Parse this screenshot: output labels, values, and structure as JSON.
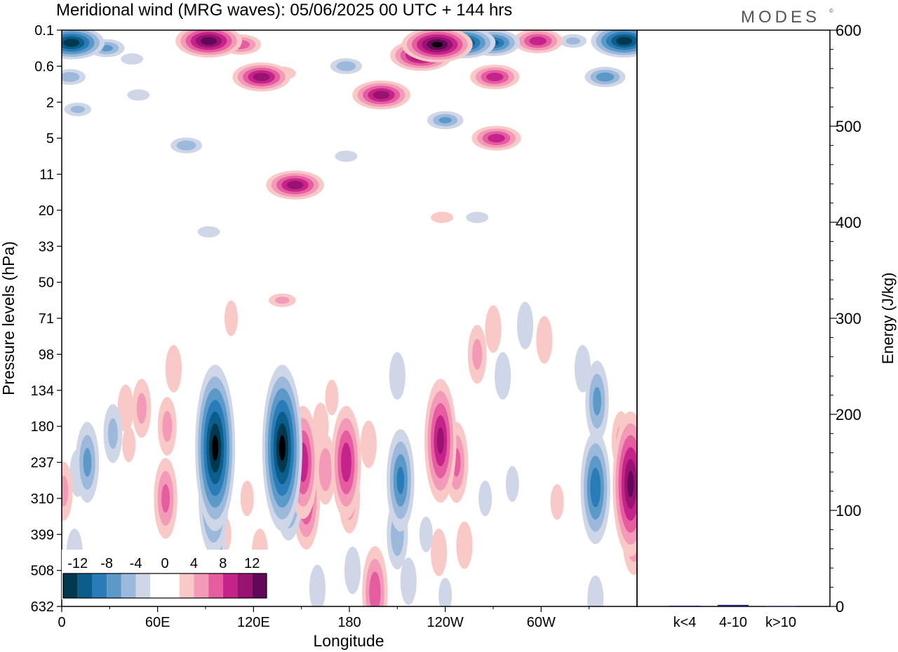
{
  "title": "Meridional wind (MRG waves):  05/06/2025  00 UTC  + 144 hrs",
  "brand": "MODES",
  "brand_mark": "©",
  "colors": {
    "neg": [
      "#00384f",
      "#0b5d8c",
      "#2a7cb8",
      "#5b9ac8",
      "#9cb8da",
      "#cfd6e8"
    ],
    "pos": [
      "#f8c9c6",
      "#f29ab8",
      "#e55c9f",
      "#c6238a",
      "#98126f",
      "#62075a"
    ],
    "zero": "#ffffff",
    "bar": "#1a1a66"
  },
  "chart_data": [
    {
      "type": "heatmap",
      "title": "Meridional wind (MRG waves):  05/06/2025  00 UTC  + 144 hrs",
      "xlabel": "Longitude",
      "ylabel": "Pressure levels (hPa)",
      "x_ticks": [
        "0",
        "60E",
        "120E",
        "180",
        "120W",
        "60W"
      ],
      "x_range_deg": [
        0,
        360
      ],
      "y_ticks": [
        "0.1",
        "0.6",
        "2",
        "5",
        "11",
        "20",
        "33",
        "50",
        "71",
        "98",
        "134",
        "180",
        "237",
        "310",
        "399",
        "508",
        "632"
      ],
      "colorbar": {
        "labels": [
          "-12",
          "-8",
          "-4",
          "0",
          "4",
          "8",
          "12"
        ],
        "levels": [
          -14,
          -12,
          -10,
          -8,
          -6,
          -4,
          -2,
          2,
          4,
          6,
          8,
          10,
          12,
          14
        ]
      },
      "features": [
        {
          "lon": 6,
          "lev": 0.35,
          "v": -13
        },
        {
          "lon": 28,
          "lev": 0.5,
          "v": -6
        },
        {
          "lon": 5,
          "lev": 1.3,
          "v": -5
        },
        {
          "lon": 10,
          "lev": 2.2,
          "v": -4
        },
        {
          "lon": 44,
          "lev": 0.8,
          "v": -3
        },
        {
          "lon": 48,
          "lev": 1.8,
          "v": -3
        },
        {
          "lon": 92,
          "lev": 0.3,
          "v": 13
        },
        {
          "lon": 112,
          "lev": 0.4,
          "v": 7
        },
        {
          "lon": 125,
          "lev": 1.3,
          "v": 11
        },
        {
          "lon": 138,
          "lev": 1.2,
          "v": 4
        },
        {
          "lon": 146,
          "lev": 4.3,
          "v": 11
        },
        {
          "lon": 138,
          "lev": 7.5,
          "v": 4
        },
        {
          "lon": 165,
          "lev": 12.2,
          "v": 5
        },
        {
          "lon": 178,
          "lev": 1.0,
          "v": -5
        },
        {
          "lon": 178,
          "lev": 3.5,
          "v": -3
        },
        {
          "lon": 200,
          "lev": 1.8,
          "v": 11
        },
        {
          "lon": 225,
          "lev": 0.7,
          "v": 12
        },
        {
          "lon": 235,
          "lev": 0.4,
          "v": 14
        },
        {
          "lon": 252,
          "lev": 0.35,
          "v": -12
        },
        {
          "lon": 270,
          "lev": 0.35,
          "v": -10
        },
        {
          "lon": 240,
          "lev": 2.5,
          "v": -6
        },
        {
          "lon": 260,
          "lev": 5.2,
          "v": -3
        },
        {
          "lon": 271,
          "lev": 1.3,
          "v": 9
        },
        {
          "lon": 272,
          "lev": 3.0,
          "v": 9
        },
        {
          "lon": 298,
          "lev": 0.3,
          "v": 9
        },
        {
          "lon": 320,
          "lev": 0.3,
          "v": -4
        },
        {
          "lon": 352,
          "lev": 0.3,
          "v": -13
        },
        {
          "lon": 340,
          "lev": 1.3,
          "v": -7
        },
        {
          "lon": 335,
          "lev": 10.3,
          "v": -6
        },
        {
          "lon": 40,
          "lev": 10.5,
          "v": 3
        },
        {
          "lon": 78,
          "lev": 3.2,
          "v": -5
        },
        {
          "lon": 92,
          "lev": 5.6,
          "v": -3
        },
        {
          "lon": 238,
          "lev": 5.2,
          "v": 3
        },
        {
          "lon": 210,
          "lev": 9.6,
          "v": -3
        },
        {
          "lon": 252,
          "lev": 14.3,
          "v": 3
        },
        {
          "lon": 102,
          "lev": 14.0,
          "v": 2
        },
        {
          "lon": 70,
          "lev": 9.4,
          "v": 3
        },
        {
          "lon": 90,
          "lev": 10.9,
          "v": 2
        },
        {
          "lon": 106,
          "lev": 8.0,
          "v": 2
        },
        {
          "lon": 42,
          "lev": 11.5,
          "v": 2
        },
        {
          "lon": 10,
          "lev": 12.3,
          "v": -3
        },
        {
          "lon": 16,
          "lev": 12.0,
          "v": -6
        },
        {
          "lon": 32,
          "lev": 11.2,
          "v": -4
        },
        {
          "lon": 8,
          "lev": 14.5,
          "v": -3
        },
        {
          "lon": 50,
          "lev": 10.5,
          "v": 4
        },
        {
          "lon": 66,
          "lev": 11.0,
          "v": 4
        },
        {
          "lon": 65,
          "lev": 13.0,
          "v": 6
        },
        {
          "lon": 96,
          "lev": 11.6,
          "v": -14
        },
        {
          "lon": 95,
          "lev": 13.0,
          "v": -9
        },
        {
          "lon": 97,
          "lev": 14.7,
          "v": -5
        },
        {
          "lon": 116,
          "lev": 13.0,
          "v": 2
        },
        {
          "lon": 124,
          "lev": 14.5,
          "v": 3
        },
        {
          "lon": 138,
          "lev": 11.6,
          "v": -14
        },
        {
          "lon": 142,
          "lev": 12.6,
          "v": -9
        },
        {
          "lon": 151,
          "lev": 12.0,
          "v": 9
        },
        {
          "lon": 153,
          "lev": 13.0,
          "v": 8
        },
        {
          "lon": 162,
          "lev": 11.0,
          "v": 3
        },
        {
          "lon": 169,
          "lev": 10.2,
          "v": 2
        },
        {
          "lon": 178,
          "lev": 12.0,
          "v": 9
        },
        {
          "lon": 180,
          "lev": 13.0,
          "v": 5
        },
        {
          "lon": 192,
          "lev": 11.5,
          "v": 3
        },
        {
          "lon": 196,
          "lev": 15.6,
          "v": 7
        },
        {
          "lon": 160,
          "lev": 15.5,
          "v": -3
        },
        {
          "lon": 182,
          "lev": 15.0,
          "v": -3
        },
        {
          "lon": 212,
          "lev": 12.5,
          "v": -8
        },
        {
          "lon": 210,
          "lev": 14.0,
          "v": -5
        },
        {
          "lon": 217,
          "lev": 15.3,
          "v": -3
        },
        {
          "lon": 237,
          "lev": 11.4,
          "v": 10
        },
        {
          "lon": 247,
          "lev": 12.0,
          "v": 6
        },
        {
          "lon": 260,
          "lev": 9.0,
          "v": 4
        },
        {
          "lon": 270,
          "lev": 8.3,
          "v": 3
        },
        {
          "lon": 276,
          "lev": 9.6,
          "v": -3
        },
        {
          "lon": 290,
          "lev": 8.2,
          "v": -3
        },
        {
          "lon": 302,
          "lev": 8.6,
          "v": 3
        },
        {
          "lon": 326,
          "lev": 9.4,
          "v": -3
        },
        {
          "lon": 334,
          "lev": 12.7,
          "v": -9
        },
        {
          "lon": 334,
          "lev": 15.8,
          "v": -3
        },
        {
          "lon": 356,
          "lev": 12.6,
          "v": 12
        },
        {
          "lon": 350,
          "lev": 11.4,
          "v": 4
        },
        {
          "lon": 358,
          "lev": 14.0,
          "v": 6
        },
        {
          "lon": 1,
          "lev": 12.8,
          "v": 4
        },
        {
          "lon": 236,
          "lev": 14.5,
          "v": 3
        },
        {
          "lon": 265,
          "lev": 13.0,
          "v": -2
        },
        {
          "lon": 282,
          "lev": 12.6,
          "v": -2
        },
        {
          "lon": 310,
          "lev": 13.1,
          "v": 2
        },
        {
          "lon": 240,
          "lev": 15.7,
          "v": -2
        },
        {
          "lon": 228,
          "lev": 14.0,
          "v": -2
        }
      ]
    },
    {
      "type": "bar",
      "ylabel": "Energy (J/kg)",
      "ylim": [
        0,
        600
      ],
      "y_ticks": [
        "0",
        "100",
        "200",
        "300",
        "400",
        "500",
        "600"
      ],
      "categories": [
        "k<4",
        "4-10",
        "k>10"
      ],
      "values": [
        0.8,
        1.6,
        0.2
      ]
    }
  ]
}
